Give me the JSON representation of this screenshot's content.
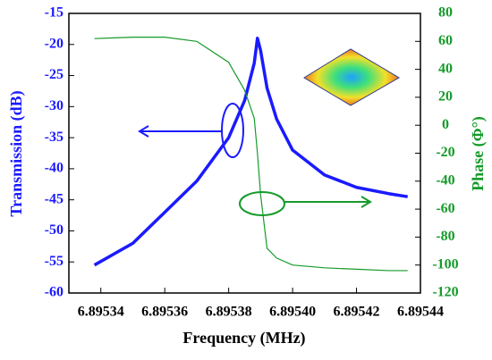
{
  "chart_data": {
    "type": "line",
    "xlabel": "Frequency (MHz)",
    "ylabel": "Transmission (dB)",
    "y2label": "Phase (Φ°)",
    "x": [
      6.895338,
      6.89535,
      6.89536,
      6.89537,
      6.89538,
      6.895385,
      6.895388,
      6.895389,
      6.89539,
      6.895392,
      6.895395,
      6.8954,
      6.89541,
      6.89542,
      6.89543,
      6.895436
    ],
    "series": [
      {
        "color": "#1a1aff",
        "values": [
          -55.5,
          -52,
          -47,
          -42,
          -35,
          -29,
          -23,
          -19,
          -21,
          -27,
          -32,
          -37,
          -41,
          -43,
          -44,
          -44.5
        ]
      },
      {
        "color": "#159b2a",
        "axis": "y2",
        "values": [
          62,
          63,
          63,
          60,
          45,
          25,
          5,
          -20,
          -50,
          -88,
          -95,
          -100,
          -102,
          -103,
          -104,
          -104
        ]
      }
    ],
    "xlim": [
      6.89533,
      6.89544
    ],
    "xticks": [
      6.89534,
      6.89536,
      6.89538,
      {
        "value": 6.8954,
        "label": "6.89540"
      },
      6.89542,
      6.89544
    ],
    "ylim": [
      -60,
      -15
    ],
    "yticks": [
      -60,
      -55,
      -50,
      -45,
      -40,
      -35,
      -30,
      -25,
      -20,
      -15
    ],
    "y2lim": [
      -120,
      80
    ],
    "y2ticks": [
      -120,
      -100,
      -80,
      -60,
      -40,
      -20,
      0,
      20,
      40,
      60,
      80
    ]
  }
}
